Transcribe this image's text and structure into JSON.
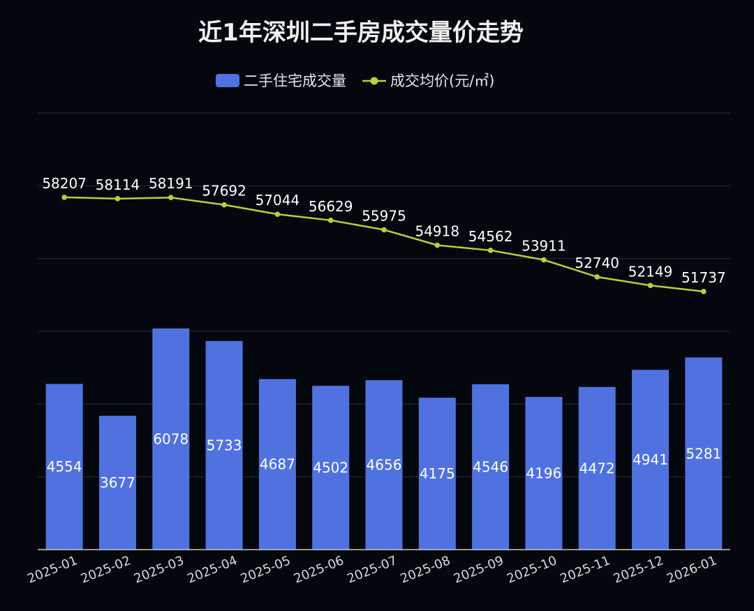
{
  "chart_data": {
    "type": "bar",
    "title": "近1年深圳二手房成交量价走势",
    "legend_position": "top",
    "grid": true,
    "categories": [
      "2025-01",
      "2025-02",
      "2025-03",
      "2025-04",
      "2025-05",
      "2025-06",
      "2025-07",
      "2025-08",
      "2025-09",
      "2025-10",
      "2025-11",
      "2025-12",
      "2026-01"
    ],
    "series": [
      {
        "name": "二手住宅成交量",
        "type": "bar",
        "axis": "left",
        "color": "#5072e0",
        "values": [
          4554,
          3677,
          6078,
          5733,
          4687,
          4502,
          4656,
          4175,
          4546,
          4196,
          4472,
          4941,
          5281
        ]
      },
      {
        "name": "成交均价(元/㎡)",
        "type": "line",
        "axis": "right",
        "color": "#b5d334",
        "values": [
          58207,
          58114,
          58191,
          57692,
          57044,
          56629,
          55975,
          54918,
          54562,
          53911,
          52740,
          52149,
          51737
        ]
      }
    ],
    "ylim_left": [
      0,
      12000
    ],
    "ylim_right": [
      34000,
      64000
    ]
  },
  "colors": {
    "background": "#05070e",
    "grid": "#2a2d36",
    "axis": "#c8c8c8"
  }
}
